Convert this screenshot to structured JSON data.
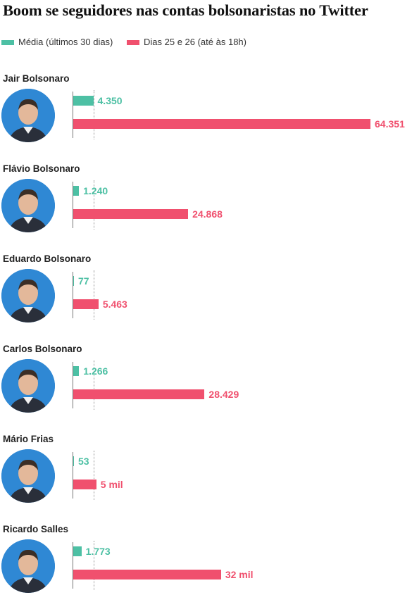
{
  "title": "Boom se seguidores nas contas bolsonaristas no Twitter",
  "legend": [
    {
      "label": "Média (últimos 30 dias)",
      "color": "#4dc0a4"
    },
    {
      "label": "Dias 25 e 26  (até às 18h)",
      "color": "#f0506e"
    }
  ],
  "chart_data": {
    "type": "bar",
    "orientation": "horizontal",
    "title": "Boom se seguidores nas contas bolsonaristas no Twitter",
    "categories": [
      "Jair Bolsonaro",
      "Flávio Bolsonaro",
      "Eduardo Bolsonaro",
      "Carlos Bolsonaro",
      "Mário Frias",
      "Ricardo Salles"
    ],
    "series": [
      {
        "name": "Média (últimos 30 dias)",
        "color": "#4dc0a4",
        "values": [
          4350,
          1240,
          77,
          1266,
          53,
          1773
        ],
        "labels": [
          "4.350",
          "1.240",
          "77",
          "1.266",
          "53",
          "1.773"
        ]
      },
      {
        "name": "Dias 25 e 26  (até às 18h)",
        "color": "#f0506e",
        "values": [
          64351,
          24868,
          5463,
          28429,
          5000,
          32000
        ],
        "labels": [
          "64.351",
          "24.868",
          "5.463",
          "28.429",
          "5 mil",
          "32 mil"
        ]
      }
    ],
    "xlim": [
      0,
      64351
    ],
    "grid": false,
    "legend_position": "top-left"
  },
  "people": [
    {
      "name": "Jair Bolsonaro",
      "avatar_icon": "person-photo-icon"
    },
    {
      "name": "Flávio Bolsonaro",
      "avatar_icon": "person-photo-icon"
    },
    {
      "name": "Eduardo Bolsonaro",
      "avatar_icon": "person-photo-icon"
    },
    {
      "name": "Carlos Bolsonaro",
      "avatar_icon": "person-photo-icon"
    },
    {
      "name": "Mário Frias",
      "avatar_icon": "person-photo-icon"
    },
    {
      "name": "Ricardo Salles",
      "avatar_icon": "person-photo-icon"
    }
  ],
  "colors": {
    "media": "#4dc0a4",
    "dias": "#f0506e",
    "avatar_bg": "#2f88d4"
  }
}
